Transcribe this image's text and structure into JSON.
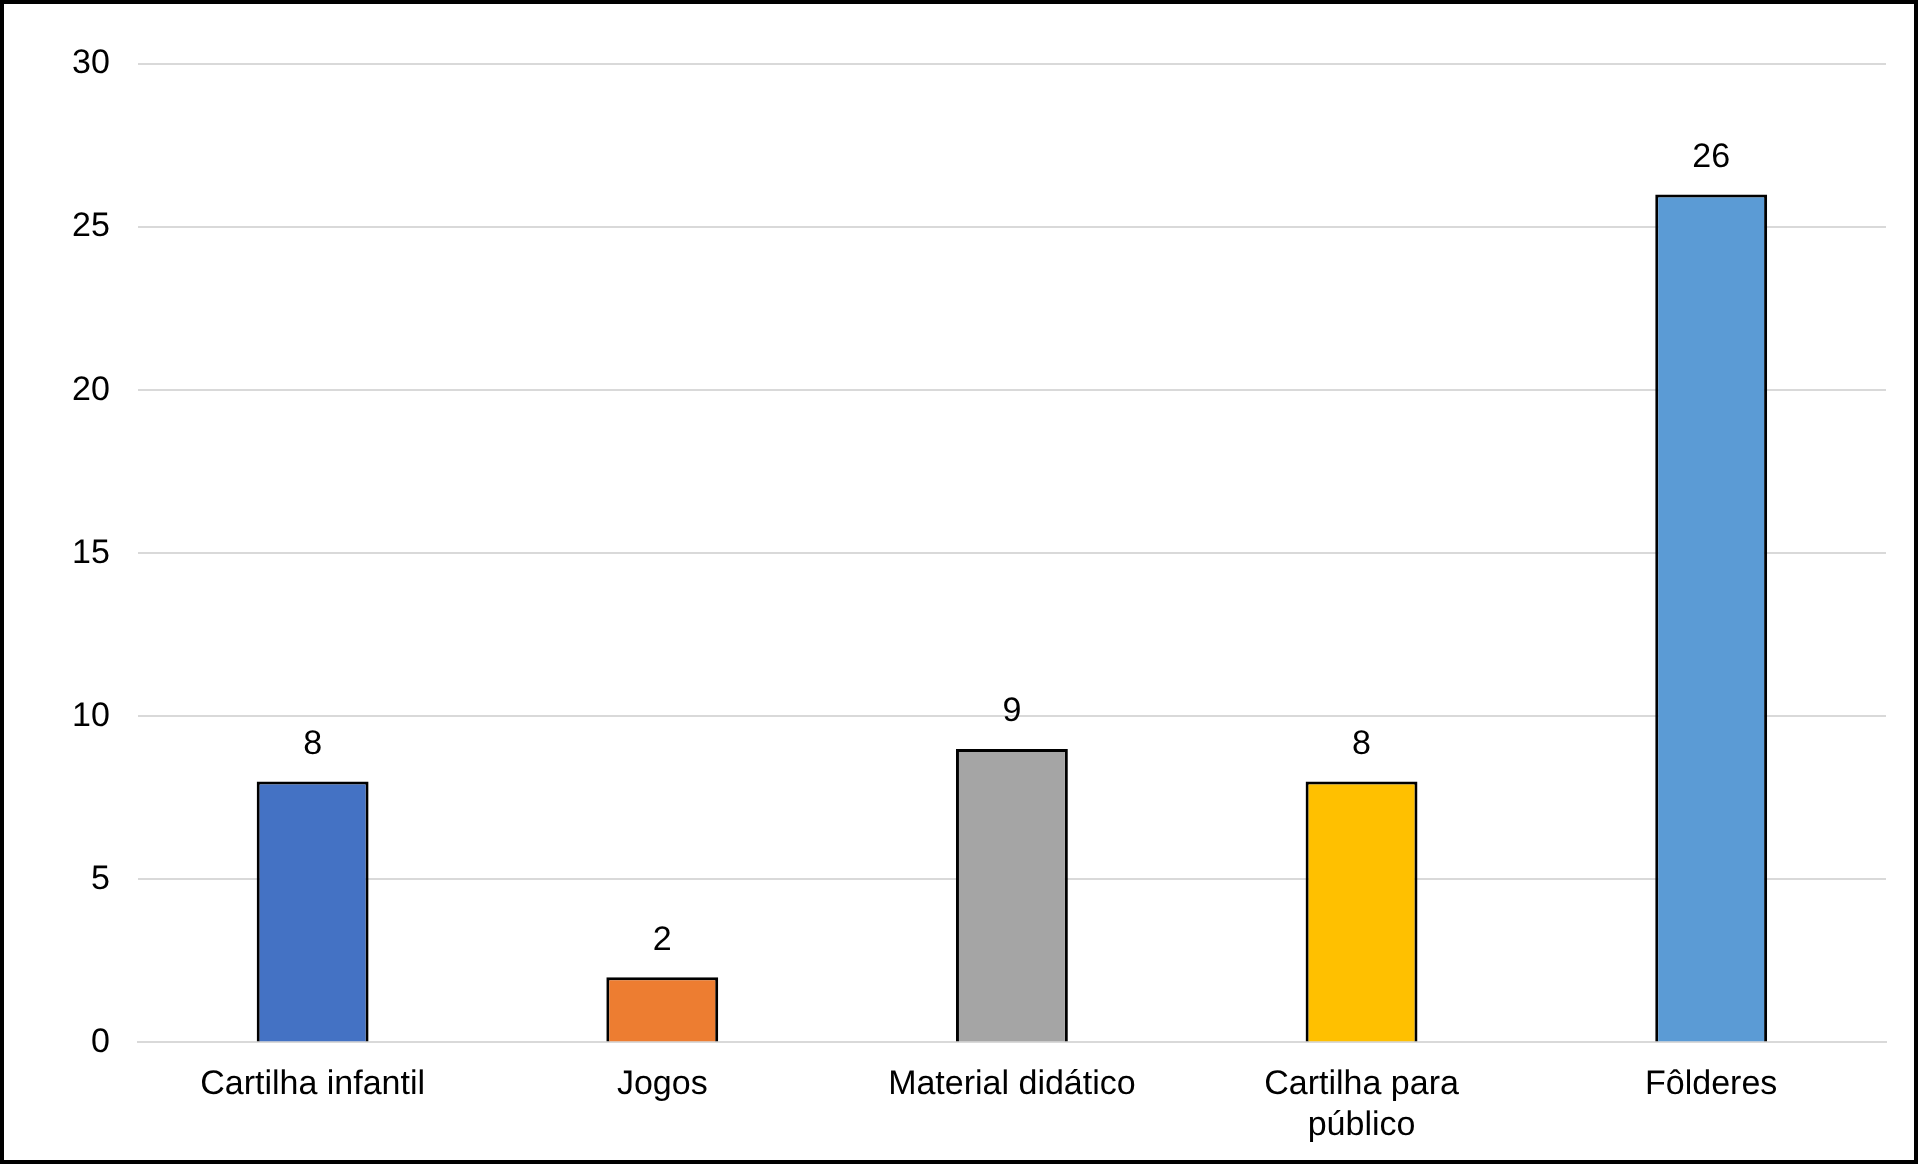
{
  "chart_data": {
    "type": "bar",
    "categories": [
      "Cartilha infantil",
      "Jogos",
      "Material didático",
      "Cartilha para público",
      "Fôlderes"
    ],
    "values": [
      8,
      2,
      9,
      8,
      26
    ],
    "colors": [
      "#4472c4",
      "#ed7d31",
      "#a5a5a5",
      "#ffc000",
      "#5b9bd5"
    ],
    "ylim": [
      0,
      30
    ],
    "yticks": [
      0,
      5,
      10,
      15,
      20,
      25,
      30
    ],
    "grid": "y",
    "legend": false,
    "data_labels": true
  }
}
